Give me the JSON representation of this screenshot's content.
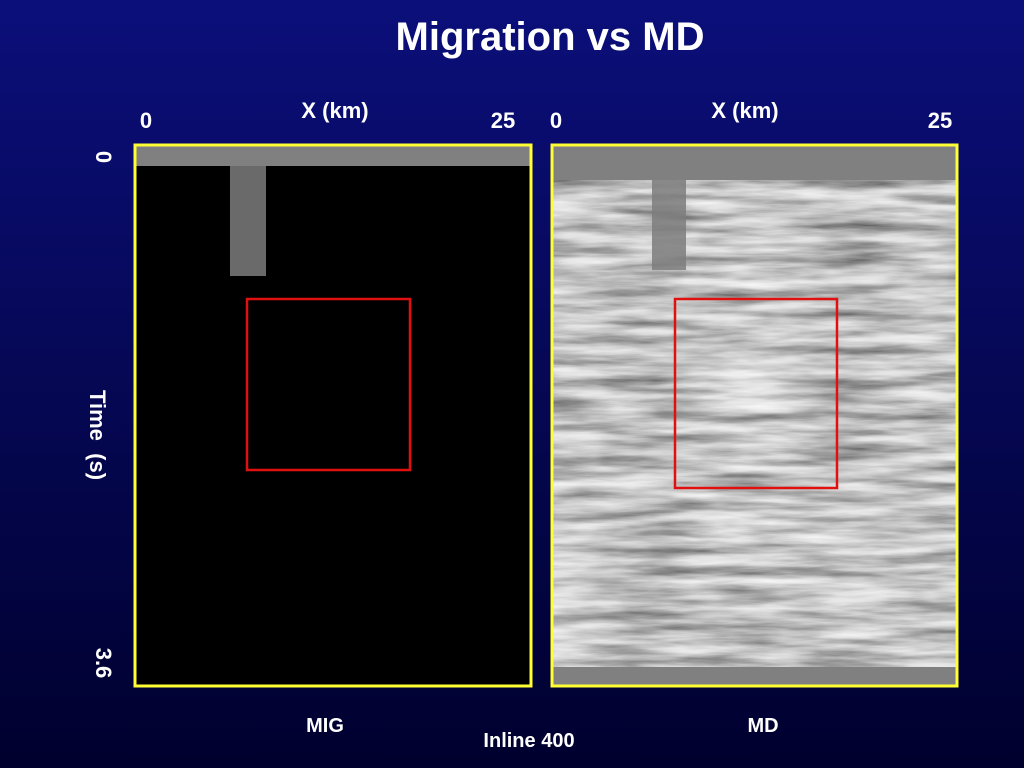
{
  "title": "Migration vs MD",
  "y_axis": {
    "label": "Time  (s)",
    "ticks": [
      "0",
      "3.6"
    ]
  },
  "panels": [
    {
      "x_label": "X (km)",
      "x_ticks": [
        "0",
        "25"
      ],
      "caption": "MIG"
    },
    {
      "x_label": "X (km)",
      "x_ticks": [
        "0",
        "25"
      ],
      "caption": "MD"
    }
  ],
  "footer": "Inline 400"
}
